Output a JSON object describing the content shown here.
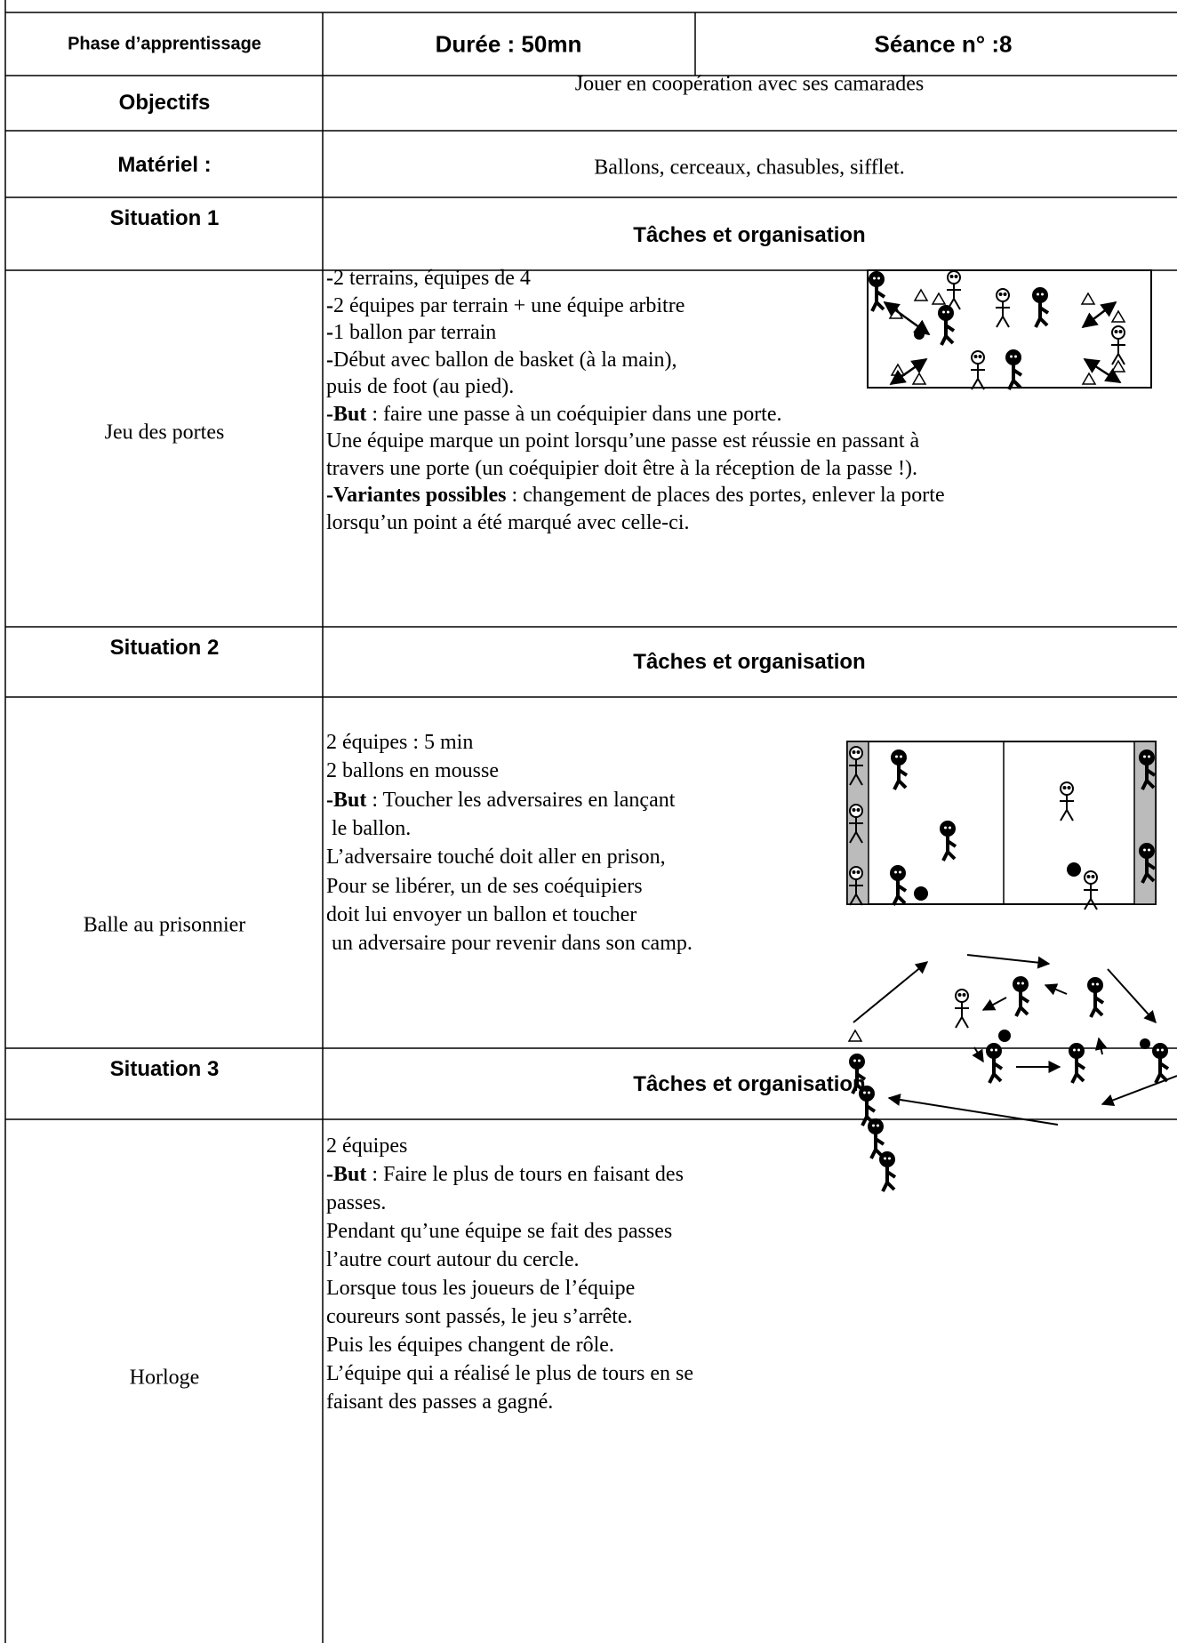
{
  "header": {
    "phase": "Phase d’apprentissage",
    "duree": "Durée : 50mn",
    "seance": "Séance n° :8"
  },
  "objectifs": {
    "label": "Objectifs",
    "text": "Jouer en coopération avec ses camarades"
  },
  "materiel": {
    "label": "Matériel :",
    "text": "Ballons, cerceaux, chasubles, sifflet."
  },
  "situations": [
    {
      "label": "Situation 1",
      "header": "Tâches et organisation",
      "name": "Jeu des portes",
      "lines": [
        {
          "bold": "-",
          "text": "2 terrains, équipes de 4"
        },
        {
          "bold": "-",
          "text": "2 équipes par terrain + une équipe arbitre"
        },
        {
          "bold": "-",
          "text": "1 ballon par terrain"
        },
        {
          "bold": "-",
          "text": "Début avec ballon de basket (à la main),"
        },
        {
          "text": "puis de foot (au pied)."
        },
        {
          "bold": "-But",
          "text": " : faire une passe à un coéquipier dans une porte."
        },
        {
          "text": "Une équipe marque un point lorsqu’une passe est réussie en passant à"
        },
        {
          "text": "travers une porte (un coéquipier doit être à la réception de la passe !)."
        },
        {
          "bold": "-Variantes possibles",
          "text": " : changement de places des portes, enlever la porte"
        },
        {
          "text": "lorsqu’un point a été marqué avec celle-ci."
        }
      ]
    },
    {
      "label": "Situation 2",
      "header": "Tâches et organisation",
      "name": "Balle au prisonnier",
      "lines": [
        {
          "text": "2 équipes : 5 min"
        },
        {
          "text": "2 ballons en mousse"
        },
        {
          "bold": "-But",
          "text": " : Toucher les adversaires en lançant"
        },
        {
          "text": " le ballon."
        },
        {
          "text": "L’adversaire touché doit aller en prison,"
        },
        {
          "text": "Pour se libérer, un de ses coéquipiers"
        },
        {
          "text": "doit lui envoyer un ballon et toucher"
        },
        {
          "text": " un adversaire pour revenir dans son camp."
        }
      ]
    },
    {
      "label": "Situation 3",
      "header": "Tâches et organisation",
      "name": "Horloge",
      "lines": [
        {
          "text": "2 équipes"
        },
        {
          "bold": "-But",
          "text": " : Faire le plus de tours en faisant des"
        },
        {
          "text": "passes."
        },
        {
          "text": "Pendant qu’une équipe se fait des passes"
        },
        {
          "text": "l’autre court autour du cercle."
        },
        {
          "text": "Lorsque tous les joueurs de l’équipe"
        },
        {
          "text": "coureurs sont passés, le jeu s’arrête."
        },
        {
          "text": "Puis les équipes changent de rôle."
        },
        {
          "text": "L’équipe qui a réalisé le plus de tours en se"
        },
        {
          "text": "faisant des passes a gagné."
        }
      ]
    }
  ]
}
